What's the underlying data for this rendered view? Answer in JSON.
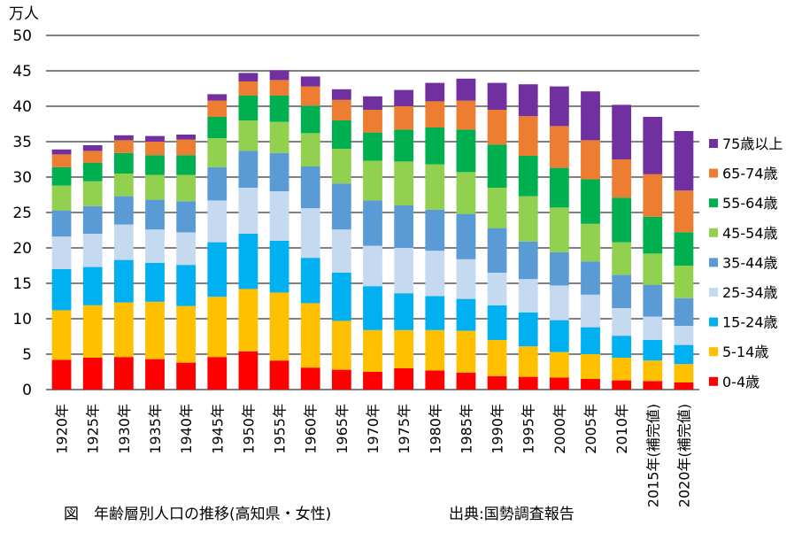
{
  "chart_data": {
    "type": "bar",
    "stacked": true,
    "unit_label": "万人",
    "ylim": [
      0,
      50
    ],
    "yticks": [
      0,
      5,
      10,
      15,
      20,
      25,
      30,
      35,
      40,
      45,
      50
    ],
    "grid": true,
    "legend_position": "right",
    "categories": [
      "1920年",
      "1925年",
      "1930年",
      "1935年",
      "1940年",
      "1945年",
      "1950年",
      "1955年",
      "1960年",
      "1965年",
      "1970年",
      "1975年",
      "1980年",
      "1985年",
      "1990年",
      "1995年",
      "2000年",
      "2005年",
      "2010年",
      "2015年(補完値)",
      "2020年(補完値)"
    ],
    "series": [
      {
        "name": "0-4歳",
        "color": "#ff0000",
        "values": [
          4.2,
          4.5,
          4.6,
          4.3,
          3.8,
          4.6,
          5.4,
          4.1,
          3.1,
          2.8,
          2.5,
          3.0,
          2.7,
          2.4,
          1.9,
          1.8,
          1.7,
          1.5,
          1.3,
          1.2,
          1.0
        ]
      },
      {
        "name": "5-14歳",
        "color": "#ffc000",
        "values": [
          7.0,
          7.4,
          7.7,
          8.1,
          8.0,
          8.5,
          8.8,
          9.6,
          9.1,
          6.9,
          5.9,
          5.4,
          5.7,
          5.9,
          5.1,
          4.3,
          3.6,
          3.5,
          3.2,
          2.9,
          2.6
        ]
      },
      {
        "name": "15-24歳",
        "color": "#00b0f0",
        "values": [
          5.8,
          5.4,
          6.0,
          5.5,
          5.8,
          7.7,
          7.8,
          7.3,
          6.4,
          6.8,
          6.2,
          5.2,
          4.8,
          4.5,
          4.9,
          4.8,
          4.5,
          3.8,
          3.1,
          2.9,
          2.7
        ]
      },
      {
        "name": "25-34歳",
        "color": "#c5d9f1",
        "values": [
          4.6,
          4.7,
          5.0,
          4.7,
          4.6,
          5.9,
          6.5,
          7.0,
          7.0,
          6.1,
          5.7,
          6.4,
          6.4,
          5.6,
          4.6,
          4.7,
          4.9,
          4.6,
          3.9,
          3.3,
          2.7
        ]
      },
      {
        "name": "35-44歳",
        "color": "#5b9bd5",
        "values": [
          3.7,
          3.9,
          4.0,
          4.2,
          4.4,
          4.7,
          5.2,
          5.4,
          5.9,
          6.5,
          6.4,
          6.0,
          5.8,
          6.4,
          6.3,
          5.3,
          4.7,
          4.7,
          4.7,
          4.5,
          3.9
        ]
      },
      {
        "name": "45-54歳",
        "color": "#92d050",
        "values": [
          3.5,
          3.5,
          3.2,
          3.5,
          3.7,
          4.1,
          4.3,
          4.4,
          4.7,
          4.9,
          5.6,
          6.2,
          6.4,
          5.9,
          5.7,
          6.4,
          6.3,
          5.3,
          4.6,
          4.4,
          4.6
        ]
      },
      {
        "name": "55-64歳",
        "color": "#00b050",
        "values": [
          2.6,
          2.6,
          2.9,
          2.8,
          2.8,
          3.0,
          3.5,
          3.7,
          3.9,
          4.0,
          4.0,
          4.5,
          5.2,
          6.0,
          6.1,
          5.7,
          5.6,
          6.3,
          6.3,
          5.2,
          4.7
        ]
      },
      {
        "name": "65-74歳",
        "color": "#ed7d31",
        "values": [
          1.8,
          1.7,
          1.8,
          1.9,
          2.2,
          2.3,
          2.0,
          2.2,
          2.7,
          2.9,
          3.2,
          3.3,
          3.7,
          4.1,
          4.9,
          5.6,
          5.9,
          5.5,
          5.4,
          6.0,
          5.9
        ]
      },
      {
        "name": "75歳以上",
        "color": "#7030a0",
        "values": [
          0.7,
          0.8,
          0.7,
          0.8,
          0.7,
          0.9,
          1.2,
          1.4,
          1.4,
          1.5,
          1.9,
          2.3,
          2.6,
          3.1,
          3.8,
          4.5,
          5.6,
          6.9,
          7.7,
          8.1,
          8.4
        ]
      }
    ]
  },
  "caption": "図　年齢層別人口の推移(高知県・女性)",
  "source": "出典:国勢調査報告"
}
